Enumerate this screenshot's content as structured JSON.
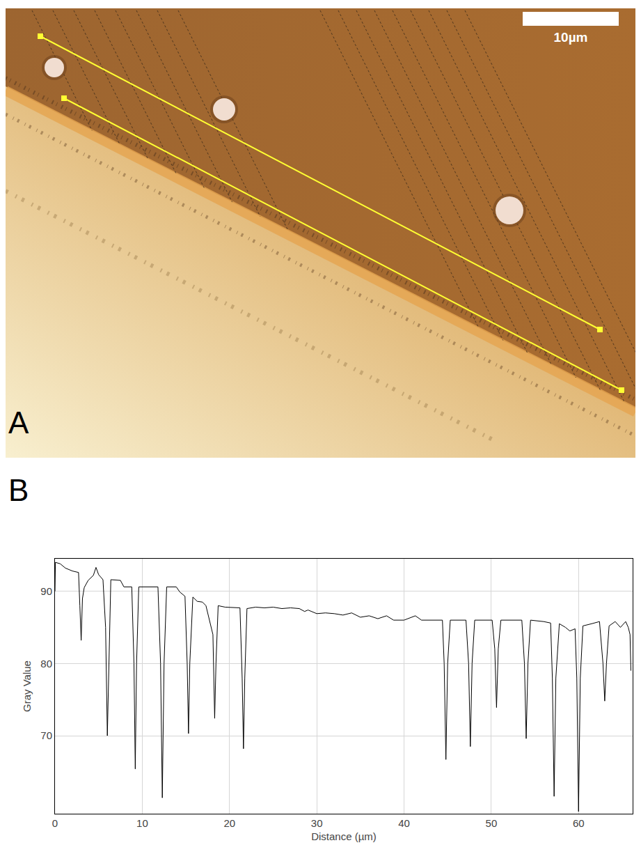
{
  "figure": {
    "panel_a": {
      "label": "A",
      "scale_bar": "10µm"
    },
    "panel_b_label": "B"
  },
  "chart_data": {
    "type": "line",
    "x_label": "Distance (µm)",
    "y_label": "Gray Value",
    "color": "#000000",
    "grid": true,
    "xlim": [
      0,
      66.2
    ],
    "ylim": [
      59.2,
      94.5
    ],
    "xticks": [
      0,
      10,
      20,
      30,
      40,
      50,
      60
    ],
    "yticks": [
      70,
      80,
      90
    ],
    "x": [
      0,
      0.05,
      0.6,
      1.2,
      2.0,
      2.7,
      2.85,
      3.0,
      3.15,
      3.35,
      3.8,
      4.4,
      4.7,
      5.0,
      5.5,
      5.8,
      6.0,
      6.15,
      6.4,
      7.5,
      7.9,
      8.8,
      9.05,
      9.2,
      9.35,
      9.6,
      11.8,
      12.1,
      12.3,
      12.5,
      12.8,
      13.9,
      14.3,
      14.9,
      15.15,
      15.3,
      15.45,
      15.8,
      16.3,
      16.9,
      17.3,
      18.1,
      18.3,
      18.45,
      18.7,
      19.5,
      20.5,
      21.2,
      21.45,
      21.6,
      21.75,
      22.0,
      23,
      24,
      25,
      26,
      27,
      28,
      28.6,
      29,
      30,
      31,
      32,
      33,
      34,
      35,
      36,
      37,
      38,
      38.8,
      40,
      41.3,
      42,
      44.4,
      44.6,
      44.8,
      45.0,
      45.3,
      47.1,
      47.4,
      47.6,
      47.8,
      48.1,
      50.1,
      50.4,
      50.6,
      50.8,
      51.1,
      53.5,
      53.8,
      54.0,
      54.2,
      54.5,
      56.0,
      56.8,
      57.0,
      57.2,
      57.4,
      57.8,
      58.5,
      59.0,
      59.6,
      59.8,
      60.0,
      60.2,
      60.5,
      61.5,
      62.4,
      62.8,
      63.0,
      63.2,
      63.5,
      64.2,
      64.8,
      65.4,
      65.7,
      65.9,
      66.0
    ],
    "values": [
      90,
      94,
      93.8,
      93.2,
      92.8,
      92.6,
      88,
      83.2,
      89,
      90.5,
      91.5,
      92.2,
      93.3,
      92.3,
      91.6,
      85,
      70,
      78,
      91.6,
      91.5,
      90.6,
      90.6,
      80,
      65.4,
      80,
      90.6,
      90.6,
      80,
      61.4,
      80,
      90.6,
      90.6,
      89.9,
      89.3,
      80,
      70.3,
      80,
      89.2,
      88.6,
      88.5,
      88,
      84,
      72.4,
      80,
      88,
      87.8,
      87.7,
      87.7,
      78,
      68.2,
      78,
      87.6,
      87.8,
      87.7,
      87.8,
      87.6,
      87.7,
      87.6,
      87.2,
      87.4,
      86.9,
      87.0,
      86.9,
      86.7,
      87.0,
      86.4,
      86.6,
      86.2,
      86.6,
      86.0,
      86.0,
      86.6,
      86.0,
      86.0,
      80,
      66.7,
      80,
      86.0,
      86.0,
      80,
      68.5,
      80,
      86.0,
      86.0,
      82,
      73.9,
      82,
      86.0,
      86.0,
      80,
      69.6,
      80,
      86.0,
      85.8,
      85.6,
      78,
      61.6,
      78,
      85.5,
      85.0,
      84.5,
      84.8,
      78,
      59.5,
      78,
      85.2,
      85.5,
      85.8,
      80,
      74.8,
      80,
      85.2,
      85.8,
      85.0,
      85.8,
      85.0,
      84,
      79
    ]
  }
}
